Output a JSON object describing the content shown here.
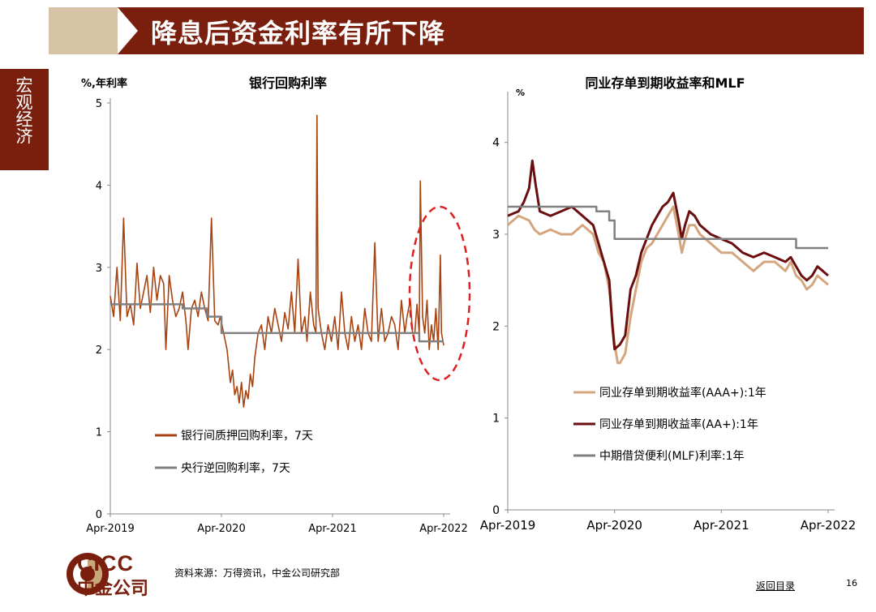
{
  "header": {
    "title": "降息后资金利率有所下降"
  },
  "sidebar": {
    "label": "宏观经济"
  },
  "footer": {
    "source": "资料来源：万得资讯，中金公司研究部",
    "back_link": "返回目录",
    "page_number": "16"
  },
  "logo": {
    "en": "CICC",
    "cn": "中金公司"
  },
  "colors": {
    "brand": "#7a1f0e",
    "header_light": "#d7c3a6",
    "repo": "#a84310",
    "grey": "#808080",
    "aaa_plus": "#d3a67e",
    "aa_plus": "#6b0e10",
    "ellipse": "#e02020"
  },
  "chart_data": [
    {
      "type": "line",
      "title": "银行回购利率",
      "ylabel": "%,年利率",
      "ylim": [
        0,
        5
      ],
      "yticks": [
        "0",
        "1",
        "2",
        "3",
        "4",
        "5"
      ],
      "xticks": [
        "Apr-2019",
        "Apr-2020",
        "Apr-2021",
        "Apr-2022"
      ],
      "xrange": [
        "2019-04",
        "2022-04"
      ],
      "annotation": "dashed red ellipse highlighting 2022",
      "legend_position": "bottom-left",
      "series": [
        {
          "name": "银行间质押回购利率，7天",
          "color": "#a84310",
          "points": [
            [
              0.0,
              2.65
            ],
            [
              0.03,
              2.4
            ],
            [
              0.06,
              3.0
            ],
            [
              0.09,
              2.35
            ],
            [
              0.12,
              3.6
            ],
            [
              0.15,
              2.4
            ],
            [
              0.18,
              2.55
            ],
            [
              0.21,
              2.3
            ],
            [
              0.24,
              3.05
            ],
            [
              0.27,
              2.5
            ],
            [
              0.3,
              2.7
            ],
            [
              0.33,
              2.9
            ],
            [
              0.36,
              2.45
            ],
            [
              0.39,
              3.0
            ],
            [
              0.42,
              2.6
            ],
            [
              0.45,
              2.9
            ],
            [
              0.48,
              2.8
            ],
            [
              0.5,
              2.0
            ],
            [
              0.53,
              2.9
            ],
            [
              0.56,
              2.6
            ],
            [
              0.59,
              2.4
            ],
            [
              0.62,
              2.5
            ],
            [
              0.65,
              2.7
            ],
            [
              0.68,
              2.35
            ],
            [
              0.7,
              2.0
            ],
            [
              0.73,
              2.5
            ],
            [
              0.76,
              2.6
            ],
            [
              0.79,
              2.4
            ],
            [
              0.82,
              2.7
            ],
            [
              0.85,
              2.5
            ],
            [
              0.88,
              2.35
            ],
            [
              0.91,
              3.6
            ],
            [
              0.94,
              2.35
            ],
            [
              0.97,
              2.3
            ],
            [
              0.99,
              2.4
            ],
            [
              1.02,
              2.2
            ],
            [
              1.05,
              2.0
            ],
            [
              1.08,
              1.6
            ],
            [
              1.1,
              1.75
            ],
            [
              1.12,
              1.45
            ],
            [
              1.14,
              1.55
            ],
            [
              1.16,
              1.35
            ],
            [
              1.18,
              1.6
            ],
            [
              1.2,
              1.3
            ],
            [
              1.22,
              1.5
            ],
            [
              1.24,
              1.4
            ],
            [
              1.26,
              1.7
            ],
            [
              1.28,
              1.55
            ],
            [
              1.3,
              1.9
            ],
            [
              1.33,
              2.2
            ],
            [
              1.36,
              2.3
            ],
            [
              1.39,
              2.0
            ],
            [
              1.42,
              2.4
            ],
            [
              1.45,
              2.2
            ],
            [
              1.48,
              2.5
            ],
            [
              1.51,
              2.3
            ],
            [
              1.54,
              2.1
            ],
            [
              1.57,
              2.45
            ],
            [
              1.6,
              2.25
            ],
            [
              1.63,
              2.7
            ],
            [
              1.66,
              2.2
            ],
            [
              1.69,
              3.1
            ],
            [
              1.72,
              2.2
            ],
            [
              1.75,
              2.4
            ],
            [
              1.77,
              2.1
            ],
            [
              1.8,
              2.7
            ],
            [
              1.83,
              2.3
            ],
            [
              1.85,
              2.2
            ],
            [
              1.86,
              4.85
            ],
            [
              1.87,
              2.5
            ],
            [
              1.9,
              2.2
            ],
            [
              1.93,
              2.0
            ],
            [
              1.96,
              2.3
            ],
            [
              1.99,
              2.1
            ],
            [
              2.02,
              2.4
            ],
            [
              2.05,
              2.0
            ],
            [
              2.08,
              2.7
            ],
            [
              2.11,
              2.2
            ],
            [
              2.14,
              2.0
            ],
            [
              2.17,
              2.4
            ],
            [
              2.2,
              2.1
            ],
            [
              2.23,
              2.3
            ],
            [
              2.26,
              2.0
            ],
            [
              2.29,
              2.5
            ],
            [
              2.32,
              2.2
            ],
            [
              2.35,
              2.1
            ],
            [
              2.38,
              3.3
            ],
            [
              2.41,
              2.1
            ],
            [
              2.44,
              2.5
            ],
            [
              2.47,
              2.1
            ],
            [
              2.5,
              2.2
            ],
            [
              2.53,
              2.4
            ],
            [
              2.56,
              2.3
            ],
            [
              2.59,
              2.0
            ],
            [
              2.62,
              2.6
            ],
            [
              2.65,
              2.2
            ],
            [
              2.67,
              2.4
            ],
            [
              2.7,
              2.6
            ],
            [
              2.72,
              2.2
            ],
            [
              2.74,
              2.2
            ],
            [
              2.76,
              2.55
            ],
            [
              2.78,
              2.2
            ],
            [
              2.79,
              4.05
            ],
            [
              2.81,
              2.4
            ],
            [
              2.83,
              2.2
            ],
            [
              2.85,
              2.6
            ],
            [
              2.87,
              2.0
            ],
            [
              2.89,
              2.3
            ],
            [
              2.91,
              2.1
            ],
            [
              2.93,
              2.5
            ],
            [
              2.95,
              2.0
            ],
            [
              2.97,
              3.15
            ],
            [
              2.98,
              2.2
            ],
            [
              3.0,
              2.05
            ]
          ]
        },
        {
          "name": "央行逆回购利率，7天",
          "color": "#808080",
          "points": [
            [
              0.0,
              2.55
            ],
            [
              0.65,
              2.55
            ],
            [
              0.65,
              2.5
            ],
            [
              0.87,
              2.5
            ],
            [
              0.87,
              2.4
            ],
            [
              1.0,
              2.4
            ],
            [
              1.0,
              2.2
            ],
            [
              2.78,
              2.2
            ],
            [
              2.78,
              2.1
            ],
            [
              3.0,
              2.1
            ]
          ]
        }
      ]
    },
    {
      "type": "line",
      "title": "同业存单到期收益率和MLF",
      "ylabel": "%",
      "ylim": [
        0,
        4.5
      ],
      "yticks": [
        "0",
        "1",
        "2",
        "3",
        "4"
      ],
      "xticks": [
        "Apr-2019",
        "Apr-2020",
        "Apr-2021",
        "Apr-2022"
      ],
      "xrange": [
        "2019-04",
        "2022-04"
      ],
      "legend_position": "middle-left",
      "series": [
        {
          "name": "同业存单到期收益率(AAA+):1年",
          "color": "#d3a67e",
          "points": [
            [
              0.0,
              3.1
            ],
            [
              0.1,
              3.2
            ],
            [
              0.2,
              3.15
            ],
            [
              0.25,
              3.05
            ],
            [
              0.3,
              3.0
            ],
            [
              0.4,
              3.05
            ],
            [
              0.5,
              3.0
            ],
            [
              0.6,
              3.0
            ],
            [
              0.7,
              3.1
            ],
            [
              0.8,
              3.0
            ],
            [
              0.85,
              2.8
            ],
            [
              0.9,
              2.7
            ],
            [
              0.95,
              2.4
            ],
            [
              1.0,
              1.8
            ],
            [
              1.03,
              1.6
            ],
            [
              1.05,
              1.6
            ],
            [
              1.1,
              1.7
            ],
            [
              1.15,
              2.1
            ],
            [
              1.2,
              2.4
            ],
            [
              1.25,
              2.7
            ],
            [
              1.3,
              2.85
            ],
            [
              1.35,
              2.9
            ],
            [
              1.4,
              3.0
            ],
            [
              1.45,
              3.1
            ],
            [
              1.5,
              3.2
            ],
            [
              1.55,
              3.3
            ],
            [
              1.6,
              3.0
            ],
            [
              1.63,
              2.8
            ],
            [
              1.66,
              2.95
            ],
            [
              1.7,
              3.1
            ],
            [
              1.75,
              3.1
            ],
            [
              1.8,
              3.0
            ],
            [
              1.9,
              2.9
            ],
            [
              2.0,
              2.8
            ],
            [
              2.1,
              2.8
            ],
            [
              2.2,
              2.7
            ],
            [
              2.3,
              2.6
            ],
            [
              2.4,
              2.7
            ],
            [
              2.5,
              2.7
            ],
            [
              2.6,
              2.6
            ],
            [
              2.65,
              2.7
            ],
            [
              2.7,
              2.55
            ],
            [
              2.75,
              2.5
            ],
            [
              2.8,
              2.4
            ],
            [
              2.85,
              2.45
            ],
            [
              2.9,
              2.55
            ],
            [
              2.95,
              2.5
            ],
            [
              3.0,
              2.45
            ]
          ]
        },
        {
          "name": "同业存单到期收益率(AA+):1年",
          "color": "#6b0e10",
          "points": [
            [
              0.0,
              3.2
            ],
            [
              0.1,
              3.25
            ],
            [
              0.15,
              3.35
            ],
            [
              0.2,
              3.5
            ],
            [
              0.23,
              3.8
            ],
            [
              0.26,
              3.55
            ],
            [
              0.3,
              3.25
            ],
            [
              0.4,
              3.2
            ],
            [
              0.5,
              3.25
            ],
            [
              0.6,
              3.3
            ],
            [
              0.7,
              3.2
            ],
            [
              0.8,
              3.1
            ],
            [
              0.85,
              2.9
            ],
            [
              0.9,
              2.7
            ],
            [
              0.95,
              2.5
            ],
            [
              0.98,
              2.0
            ],
            [
              1.0,
              1.75
            ],
            [
              1.05,
              1.8
            ],
            [
              1.1,
              1.9
            ],
            [
              1.15,
              2.4
            ],
            [
              1.2,
              2.55
            ],
            [
              1.25,
              2.8
            ],
            [
              1.3,
              2.95
            ],
            [
              1.35,
              3.1
            ],
            [
              1.4,
              3.2
            ],
            [
              1.45,
              3.3
            ],
            [
              1.5,
              3.35
            ],
            [
              1.55,
              3.45
            ],
            [
              1.6,
              3.15
            ],
            [
              1.63,
              2.95
            ],
            [
              1.66,
              3.1
            ],
            [
              1.7,
              3.25
            ],
            [
              1.75,
              3.2
            ],
            [
              1.8,
              3.1
            ],
            [
              1.9,
              3.0
            ],
            [
              2.0,
              2.95
            ],
            [
              2.1,
              2.9
            ],
            [
              2.2,
              2.8
            ],
            [
              2.3,
              2.75
            ],
            [
              2.4,
              2.8
            ],
            [
              2.5,
              2.75
            ],
            [
              2.6,
              2.7
            ],
            [
              2.65,
              2.75
            ],
            [
              2.7,
              2.65
            ],
            [
              2.75,
              2.55
            ],
            [
              2.8,
              2.5
            ],
            [
              2.85,
              2.55
            ],
            [
              2.9,
              2.65
            ],
            [
              2.95,
              2.6
            ],
            [
              3.0,
              2.55
            ]
          ]
        },
        {
          "name": "中期借贷便利(MLF)利率:1年",
          "color": "#808080",
          "points": [
            [
              0.0,
              3.3
            ],
            [
              0.83,
              3.3
            ],
            [
              0.83,
              3.25
            ],
            [
              0.95,
              3.25
            ],
            [
              0.95,
              3.15
            ],
            [
              1.0,
              3.15
            ],
            [
              1.0,
              2.95
            ],
            [
              2.7,
              2.95
            ],
            [
              2.7,
              2.85
            ],
            [
              3.0,
              2.85
            ]
          ]
        }
      ]
    }
  ]
}
